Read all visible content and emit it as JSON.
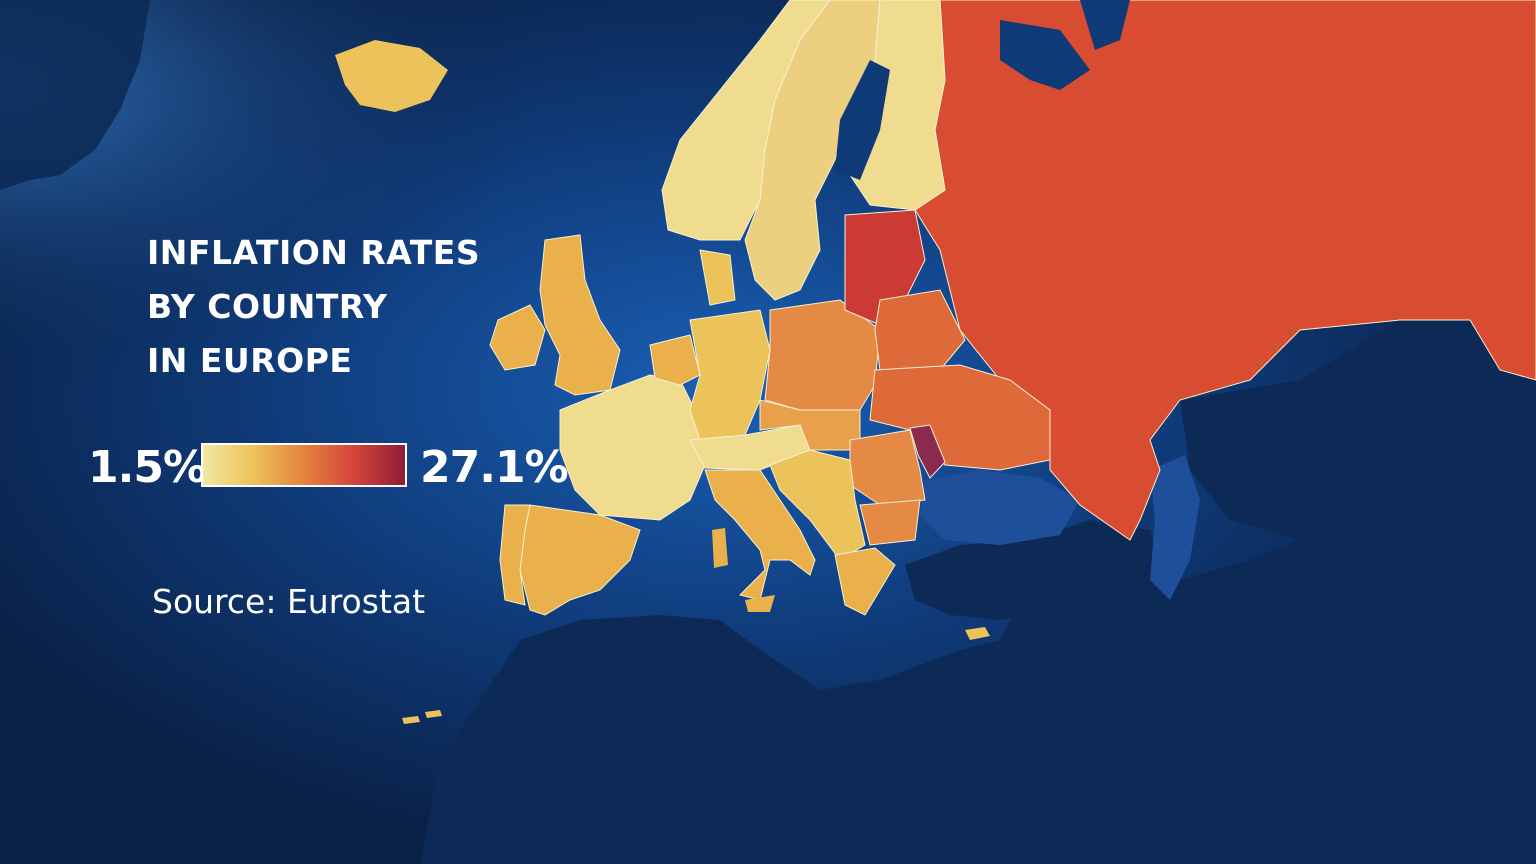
{
  "title": {
    "line1": "INFLATION RATES",
    "line2": "BY COUNTRY",
    "line3": "IN EUROPE"
  },
  "legend": {
    "min_label": "1.5%",
    "max_label": "27.1%",
    "min_value": 1.5,
    "max_value": 27.1,
    "gradient_colors": [
      "#f3e7a2",
      "#ecc25a",
      "#e4833f",
      "#d4443a",
      "#8e1d36"
    ]
  },
  "source": "Source: Eurostat",
  "colors": {
    "sea_dark": "#0a2147",
    "sea_glow": "#1a5fb4",
    "land_outside": "#0d2a56",
    "border_line": "#f6f0d0",
    "russia": "#d84c32",
    "low": "#f0dc8e",
    "mid_low": "#e9b04c",
    "mid": "#e48a45",
    "mid_high": "#de6a3a",
    "high": "#cc3a36",
    "very_high": "#8c2a4d"
  },
  "regions": [
    {
      "name": "norway",
      "level": "low"
    },
    {
      "name": "sweden",
      "level": "low"
    },
    {
      "name": "finland",
      "level": "low"
    },
    {
      "name": "iceland",
      "level": "mid_low"
    },
    {
      "name": "uk",
      "level": "mid_low"
    },
    {
      "name": "ireland",
      "level": "mid_low"
    },
    {
      "name": "france",
      "level": "low"
    },
    {
      "name": "spain",
      "level": "mid_low"
    },
    {
      "name": "portugal",
      "level": "mid_low"
    },
    {
      "name": "germany",
      "level": "mid_low"
    },
    {
      "name": "italy",
      "level": "mid_low"
    },
    {
      "name": "poland",
      "level": "mid"
    },
    {
      "name": "baltics",
      "level": "high"
    },
    {
      "name": "belarus",
      "level": "mid_high"
    },
    {
      "name": "ukraine",
      "level": "mid_high"
    },
    {
      "name": "romania",
      "level": "mid"
    },
    {
      "name": "moldova",
      "level": "very_high"
    },
    {
      "name": "balkans",
      "level": "mid_low"
    },
    {
      "name": "greece",
      "level": "mid_low"
    },
    {
      "name": "russia",
      "level": "russia"
    }
  ]
}
